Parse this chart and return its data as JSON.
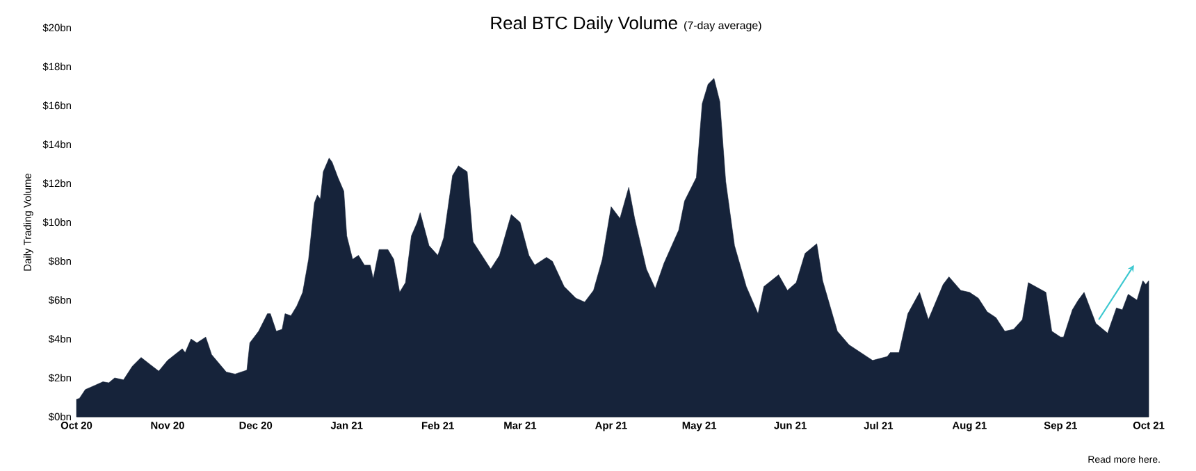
{
  "chart_data": {
    "type": "area",
    "title": "Real BTC Daily Volume",
    "subtitle": "(7-day average)",
    "ylabel": "Daily Trading Volume",
    "color": "#16233a",
    "xlim": [
      "2020-10-01",
      "2021-10-01"
    ],
    "xticks": [
      {
        "value": "2020-10-01",
        "label": "Oct 20"
      },
      {
        "value": "2020-11-01",
        "label": "Nov 20"
      },
      {
        "value": "2020-12-01",
        "label": "Dec 20"
      },
      {
        "value": "2021-01-01",
        "label": "Jan 21"
      },
      {
        "value": "2021-02-01",
        "label": "Feb 21"
      },
      {
        "value": "2021-03-01",
        "label": "Mar 21"
      },
      {
        "value": "2021-04-01",
        "label": "Apr 21"
      },
      {
        "value": "2021-05-01",
        "label": "May 21"
      },
      {
        "value": "2021-06-01",
        "label": "Jun 21"
      },
      {
        "value": "2021-07-01",
        "label": "Jul 21"
      },
      {
        "value": "2021-08-01",
        "label": "Aug 21"
      },
      {
        "value": "2021-09-01",
        "label": "Sep 21"
      },
      {
        "value": "2021-10-01",
        "label": "Oct 21"
      }
    ],
    "ylim": [
      0,
      20
    ],
    "yticks": [
      {
        "value": 0,
        "label": "$0bn"
      },
      {
        "value": 2,
        "label": "$2bn"
      },
      {
        "value": 4,
        "label": "$4bn"
      },
      {
        "value": 6,
        "label": "$6bn"
      },
      {
        "value": 8,
        "label": "$8bn"
      },
      {
        "value": 10,
        "label": "$10bn"
      },
      {
        "value": 12,
        "label": "$12bn"
      },
      {
        "value": 14,
        "label": "$14bn"
      },
      {
        "value": 16,
        "label": "$16bn"
      },
      {
        "value": 18,
        "label": "$18bn"
      },
      {
        "value": 20,
        "label": "$20bn"
      }
    ],
    "x": [
      "2020-10-01",
      "2020-10-02",
      "2020-10-04",
      "2020-10-07",
      "2020-10-10",
      "2020-10-12",
      "2020-10-14",
      "2020-10-17",
      "2020-10-20",
      "2020-10-23",
      "2020-10-26",
      "2020-10-29",
      "2020-11-01",
      "2020-11-06",
      "2020-11-07",
      "2020-11-09",
      "2020-11-11",
      "2020-11-14",
      "2020-11-16",
      "2020-11-21",
      "2020-11-24",
      "2020-11-28",
      "2020-11-29",
      "2020-12-02",
      "2020-12-05",
      "2020-12-06",
      "2020-12-08",
      "2020-12-10",
      "2020-12-11",
      "2020-12-13",
      "2020-12-15",
      "2020-12-17",
      "2020-12-19",
      "2020-12-21",
      "2020-12-22",
      "2020-12-23",
      "2020-12-24",
      "2020-12-26",
      "2020-12-27",
      "2020-12-29",
      "2020-12-31",
      "2021-01-01",
      "2021-01-03",
      "2021-01-05",
      "2021-01-07",
      "2021-01-09",
      "2021-01-10",
      "2021-01-12",
      "2021-01-15",
      "2021-01-17",
      "2021-01-19",
      "2021-01-21",
      "2021-01-23",
      "2021-01-25",
      "2021-01-26",
      "2021-01-29",
      "2021-02-01",
      "2021-02-03",
      "2021-02-06",
      "2021-02-08",
      "2021-02-11",
      "2021-02-13",
      "2021-02-19",
      "2021-02-22",
      "2021-02-26",
      "2021-03-01",
      "2021-03-04",
      "2021-03-06",
      "2021-03-10",
      "2021-03-12",
      "2021-03-16",
      "2021-03-20",
      "2021-03-23",
      "2021-03-26",
      "2021-03-29",
      "2021-04-01",
      "2021-04-04",
      "2021-04-07",
      "2021-04-09",
      "2021-04-13",
      "2021-04-16",
      "2021-04-19",
      "2021-04-24",
      "2021-04-26",
      "2021-04-30",
      "2021-05-02",
      "2021-05-04",
      "2021-05-06",
      "2021-05-08",
      "2021-05-10",
      "2021-05-13",
      "2021-05-17",
      "2021-05-21",
      "2021-05-23",
      "2021-05-28",
      "2021-05-31",
      "2021-06-03",
      "2021-06-06",
      "2021-06-10",
      "2021-06-12",
      "2021-06-17",
      "2021-06-21",
      "2021-06-27",
      "2021-06-29",
      "2021-07-04",
      "2021-07-05",
      "2021-07-08",
      "2021-07-11",
      "2021-07-15",
      "2021-07-18",
      "2021-07-23",
      "2021-07-25",
      "2021-07-29",
      "2021-08-01",
      "2021-08-04",
      "2021-08-07",
      "2021-08-10",
      "2021-08-13",
      "2021-08-16",
      "2021-08-19",
      "2021-08-21",
      "2021-08-27",
      "2021-08-29",
      "2021-09-01",
      "2021-09-02",
      "2021-09-05",
      "2021-09-07",
      "2021-09-09",
      "2021-09-13",
      "2021-09-17",
      "2021-09-20",
      "2021-09-22",
      "2021-09-24",
      "2021-09-27",
      "2021-09-29",
      "2021-09-30",
      "2021-10-01"
    ],
    "values": [
      0.9,
      0.95,
      1.4,
      1.6,
      1.8,
      1.75,
      2.0,
      1.9,
      2.6,
      3.05,
      2.7,
      2.35,
      2.9,
      3.5,
      3.3,
      4.0,
      3.8,
      4.1,
      3.2,
      2.3,
      2.2,
      2.4,
      3.8,
      4.4,
      5.3,
      5.3,
      4.4,
      4.5,
      5.3,
      5.2,
      5.7,
      6.4,
      8.1,
      11.0,
      11.4,
      11.2,
      12.6,
      13.3,
      13.1,
      12.3,
      11.6,
      9.3,
      8.1,
      8.3,
      7.8,
      7.8,
      7.1,
      8.6,
      8.6,
      8.1,
      6.4,
      6.9,
      9.3,
      10.0,
      10.5,
      8.8,
      8.3,
      9.2,
      12.4,
      12.9,
      12.6,
      9.0,
      7.6,
      8.3,
      10.4,
      10.0,
      8.3,
      7.8,
      8.2,
      8.0,
      6.7,
      6.1,
      5.9,
      6.5,
      8.1,
      10.8,
      10.2,
      11.8,
      10.2,
      7.6,
      6.6,
      7.9,
      9.6,
      11.1,
      12.3,
      16.1,
      17.1,
      17.4,
      16.2,
      12.1,
      8.8,
      6.7,
      5.3,
      6.7,
      7.3,
      6.5,
      6.9,
      8.4,
      8.9,
      7.0,
      4.4,
      3.7,
      3.1,
      2.9,
      3.1,
      3.3,
      3.3,
      5.3,
      6.4,
      5.0,
      6.8,
      7.2,
      6.5,
      6.4,
      6.1,
      5.4,
      5.1,
      4.4,
      4.5,
      5.0,
      6.9,
      6.4,
      4.4,
      4.1,
      4.1,
      5.5,
      6.0,
      6.4,
      4.8,
      4.3,
      5.6,
      5.5,
      6.3,
      6.0,
      7.0,
      6.8,
      7.0
    ],
    "annotations": [
      "Read more here."
    ]
  }
}
